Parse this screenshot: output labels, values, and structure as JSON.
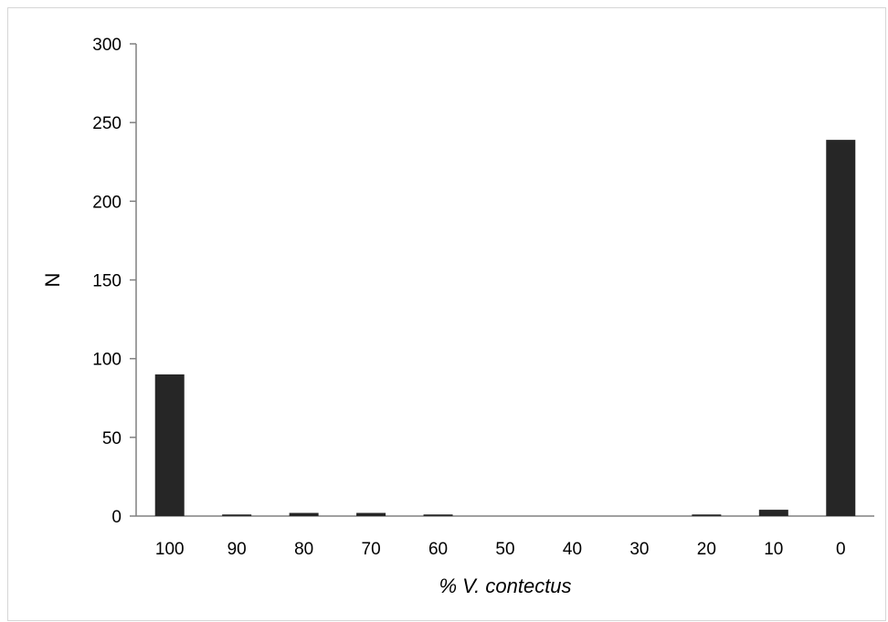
{
  "chart_data": {
    "type": "bar",
    "categories": [
      "100",
      "90",
      "80",
      "70",
      "60",
      "50",
      "40",
      "30",
      "20",
      "10",
      "0"
    ],
    "values": [
      90,
      1,
      2,
      2,
      1,
      0,
      0,
      0,
      1,
      4,
      239
    ],
    "xlabel": "% V. contectus",
    "ylabel": "N",
    "ylim": [
      0,
      300
    ],
    "yticks": [
      "0",
      "50",
      "100",
      "150",
      "200",
      "250",
      "300"
    ],
    "grid": false,
    "legend": "none",
    "bar_color": "#262626",
    "axis_color": "#808080"
  }
}
